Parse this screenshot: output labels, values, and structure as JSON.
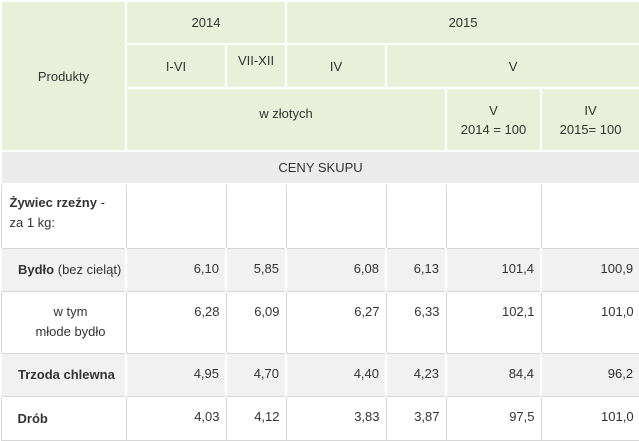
{
  "header": {
    "produkty": "Produkty",
    "year_2014": "2014",
    "year_2015": "2015",
    "periods": [
      "I-VI",
      "VII-XII",
      "IV",
      "V"
    ],
    "unit": "w złotych",
    "index_cols": [
      {
        "line1": "V",
        "line2": "2014 = 100"
      },
      {
        "line1": "IV",
        "line2": "2015= 100"
      }
    ]
  },
  "section": "CENY SKUPU",
  "rows": [
    {
      "label": "Żywiec rzeźny",
      "note": "- za 1 kg:"
    },
    {
      "label": "Bydło",
      "note": "(bez cieląt)",
      "values": [
        "6,10",
        "5,85",
        "6,08",
        "6,13",
        "101,4",
        "100,9"
      ]
    },
    {
      "lines": [
        "w tym",
        "młode bydło"
      ],
      "values": [
        "6,28",
        "6,09",
        "6,27",
        "6,33",
        "102,1",
        "101,0"
      ]
    },
    {
      "label": "Trzoda chlewna",
      "values": [
        "4,95",
        "4,70",
        "4,40",
        "4,23",
        "84,4",
        "96,2"
      ]
    },
    {
      "label": "Drób",
      "values": [
        "4,03",
        "4,12",
        "3,83",
        "3,87",
        "97,5",
        "101,0"
      ]
    }
  ]
}
